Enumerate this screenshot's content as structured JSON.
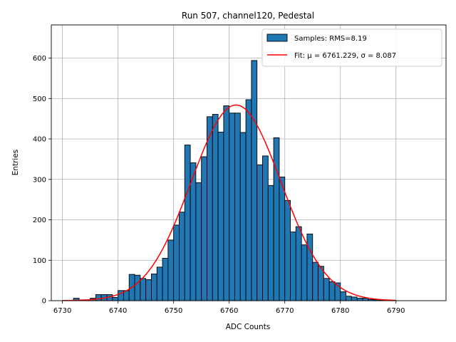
{
  "chart_data": {
    "type": "bar",
    "title": "Run 507, channel120, Pedestal",
    "xlabel": "ADC Counts",
    "ylabel": "Entries",
    "xlim": [
      6728,
      6799
    ],
    "ylim": [
      0,
      682
    ],
    "xticks": [
      6730,
      6740,
      6750,
      6760,
      6770,
      6780,
      6790
    ],
    "yticks": [
      0,
      100,
      200,
      300,
      400,
      500,
      600
    ],
    "grid": true,
    "legend_position": "top-right",
    "bar_color": "#1f77b4",
    "fit_color": "#ff0000",
    "histogram": {
      "name": "Samples: RMS=8.19",
      "bin_width": 1,
      "bin_edges": [
        6732,
        6733,
        6734,
        6735,
        6736,
        6737,
        6738,
        6739,
        6740,
        6741,
        6742,
        6743,
        6744,
        6745,
        6746,
        6747,
        6748,
        6749,
        6750,
        6751,
        6752,
        6753,
        6754,
        6755,
        6756,
        6757,
        6758,
        6759,
        6760,
        6761,
        6762,
        6763,
        6764,
        6765,
        6766,
        6767,
        6768,
        6769,
        6770,
        6771,
        6772,
        6773,
        6774,
        6775,
        6776,
        6777,
        6778,
        6779,
        6780,
        6781,
        6782,
        6783,
        6784,
        6785,
        6786,
        6787,
        6788
      ],
      "counts": [
        6,
        2,
        2,
        6,
        15,
        15,
        15,
        8,
        25,
        25,
        65,
        63,
        55,
        52,
        66,
        83,
        105,
        150,
        187,
        219,
        385,
        341,
        292,
        356,
        455,
        461,
        417,
        482,
        464,
        464,
        416,
        497,
        594,
        336,
        358,
        285,
        403,
        306,
        248,
        170,
        183,
        138,
        165,
        95,
        85,
        55,
        47,
        44,
        22,
        11,
        9,
        6,
        6,
        3,
        2,
        1
      ]
    },
    "fit": {
      "name": "Fit: μ = 6761.229, σ = 8.087",
      "mu": 6761.229,
      "sigma": 8.087,
      "amplitude": 484,
      "x_range": [
        6730,
        6790
      ]
    }
  }
}
